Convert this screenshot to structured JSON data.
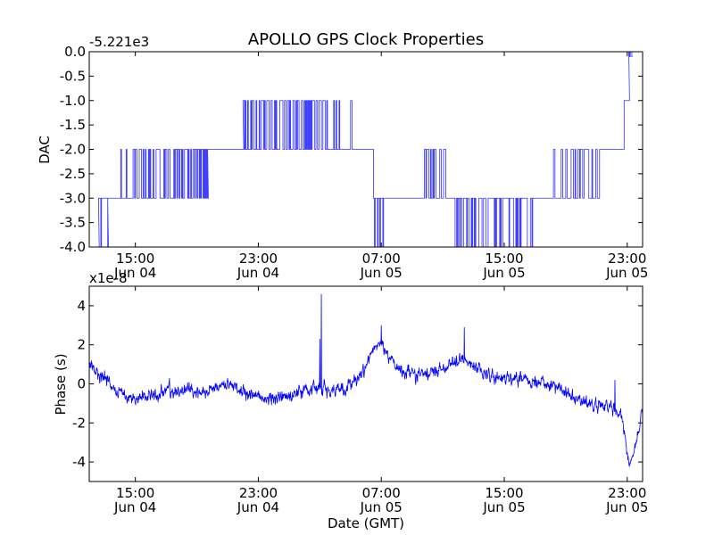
{
  "chart_data": [
    {
      "type": "line",
      "title": "APOLLO GPS Clock Properties",
      "xlabel": "",
      "ylabel": "DAC",
      "offset_label": "-5.221e3",
      "x_unit": "hours since Jun 04 15:00 GMT",
      "xlim": [
        -3,
        33
      ],
      "ylim": [
        -4.0,
        0.0
      ],
      "yticks": [
        0.0,
        -0.5,
        -1.0,
        -1.5,
        -2.0,
        -2.5,
        -3.0,
        -3.5,
        -4.0
      ],
      "ytick_labels": [
        "0.0",
        "-0.5",
        "-1.0",
        "-1.5",
        "-2.0",
        "-2.5",
        "-3.0",
        "-3.5",
        "-4.0"
      ],
      "xticks": [
        {
          "x": 0,
          "time": "15:00",
          "date": "Jun 04"
        },
        {
          "x": 8,
          "time": "23:00",
          "date": "Jun 04"
        },
        {
          "x": 16,
          "time": "07:00",
          "date": "Jun 05"
        },
        {
          "x": 24,
          "time": "15:00",
          "date": "Jun 05"
        },
        {
          "x": 32,
          "time": "23:00",
          "date": "Jun 05"
        }
      ],
      "line_color": "#3333ff",
      "series": [
        {
          "name": "DAC",
          "segments": [
            {
              "x0": -3.0,
              "x1": -2.4,
              "base": -4.0,
              "toggle": -4.0,
              "p": 0
            },
            {
              "x0": -2.4,
              "x1": -1.8,
              "base": -3.0,
              "toggle": -4.0,
              "p": 0.35
            },
            {
              "x0": -1.8,
              "x1": -0.2,
              "base": -3.0,
              "toggle": -2.0,
              "p": 0.06
            },
            {
              "x0": -0.2,
              "x1": 4.7,
              "base": -3.0,
              "toggle": -2.0,
              "p": 0.45
            },
            {
              "x0": 4.7,
              "x1": 7.0,
              "base": -2.0,
              "toggle": -2.0,
              "p": 0
            },
            {
              "x0": 7.0,
              "x1": 12.6,
              "base": -2.0,
              "toggle": -1.0,
              "p": 0.5
            },
            {
              "x0": 12.6,
              "x1": 14.3,
              "base": -2.0,
              "toggle": -1.0,
              "p": 0.12
            },
            {
              "x0": 14.3,
              "x1": 15.5,
              "base": -2.0,
              "toggle": -2.0,
              "p": 0
            },
            {
              "x0": 15.5,
              "x1": 16.2,
              "base": -3.0,
              "toggle": -4.0,
              "p": 0.2
            },
            {
              "x0": 16.2,
              "x1": 18.6,
              "base": -3.0,
              "toggle": -3.0,
              "p": 0
            },
            {
              "x0": 18.6,
              "x1": 20.3,
              "base": -3.0,
              "toggle": -2.0,
              "p": 0.4
            },
            {
              "x0": 20.3,
              "x1": 20.8,
              "base": -3.0,
              "toggle": -3.0,
              "p": 0
            },
            {
              "x0": 20.8,
              "x1": 26.0,
              "base": -3.0,
              "toggle": -4.0,
              "p": 0.4
            },
            {
              "x0": 26.0,
              "x1": 27.0,
              "base": -3.0,
              "toggle": -3.0,
              "p": 0
            },
            {
              "x0": 27.0,
              "x1": 30.2,
              "base": -3.0,
              "toggle": -2.0,
              "p": 0.45
            },
            {
              "x0": 30.2,
              "x1": 31.8,
              "base": -2.0,
              "toggle": -2.0,
              "p": 0
            },
            {
              "x0": 31.8,
              "x1": 32.1,
              "base": -1.0,
              "toggle": -1.0,
              "p": 0
            },
            {
              "x0": 32.1,
              "x1": 32.3,
              "base": 0.0,
              "toggle": -0.1,
              "p": 0.3
            }
          ]
        }
      ]
    },
    {
      "type": "line",
      "title": "",
      "xlabel": "Date (GMT)",
      "ylabel": "Phase (s)",
      "offset_label": "x1e-8",
      "x_unit": "hours since Jun 04 15:00 GMT",
      "xlim": [
        -3,
        33
      ],
      "ylim": [
        -5,
        5
      ],
      "yticks": [
        4,
        2,
        0,
        -2,
        -4
      ],
      "ytick_labels": [
        "4",
        "2",
        "0",
        "-2",
        "-4"
      ],
      "xticks": [
        {
          "x": 0,
          "time": "15:00",
          "date": "Jun 04"
        },
        {
          "x": 8,
          "time": "23:00",
          "date": "Jun 04"
        },
        {
          "x": 16,
          "time": "07:00",
          "date": "Jun 05"
        },
        {
          "x": 24,
          "time": "15:00",
          "date": "Jun 05"
        },
        {
          "x": 32,
          "time": "23:00",
          "date": "Jun 05"
        }
      ],
      "line_color": "#0000ff",
      "series": [
        {
          "name": "Phase",
          "noise": 0.55,
          "anchors": [
            [
              -3.0,
              1.0
            ],
            [
              -2.0,
              0.3
            ],
            [
              -1.0,
              -0.5
            ],
            [
              0.0,
              -0.8
            ],
            [
              1.5,
              -0.5
            ],
            [
              3.0,
              -0.3
            ],
            [
              4.5,
              -0.4
            ],
            [
              6.0,
              0.0
            ],
            [
              7.5,
              -0.6
            ],
            [
              9.0,
              -0.8
            ],
            [
              10.5,
              -0.4
            ],
            [
              12.0,
              -0.2
            ],
            [
              13.5,
              -0.3
            ],
            [
              14.5,
              0.3
            ],
            [
              15.3,
              1.5
            ],
            [
              16.0,
              2.2
            ],
            [
              16.5,
              1.3
            ],
            [
              17.5,
              0.6
            ],
            [
              19.0,
              0.5
            ],
            [
              20.5,
              1.0
            ],
            [
              21.5,
              1.3
            ],
            [
              22.0,
              0.9
            ],
            [
              23.5,
              0.3
            ],
            [
              25.0,
              0.3
            ],
            [
              26.5,
              0.0
            ],
            [
              28.0,
              -0.5
            ],
            [
              29.5,
              -1.0
            ],
            [
              31.0,
              -1.2
            ],
            [
              31.6,
              -1.6
            ],
            [
              32.0,
              -3.5
            ],
            [
              32.2,
              -4.2
            ],
            [
              32.5,
              -3.3
            ],
            [
              33.0,
              -1.4
            ]
          ],
          "spikes": [
            {
              "x": 12.1,
              "y": 4.6
            },
            {
              "x": 12.0,
              "y": 2.3
            },
            {
              "x": 21.4,
              "y": 2.9
            },
            {
              "x": 16.0,
              "y": 3.0
            },
            {
              "x": 31.2,
              "y": 0.2
            }
          ]
        }
      ]
    }
  ]
}
